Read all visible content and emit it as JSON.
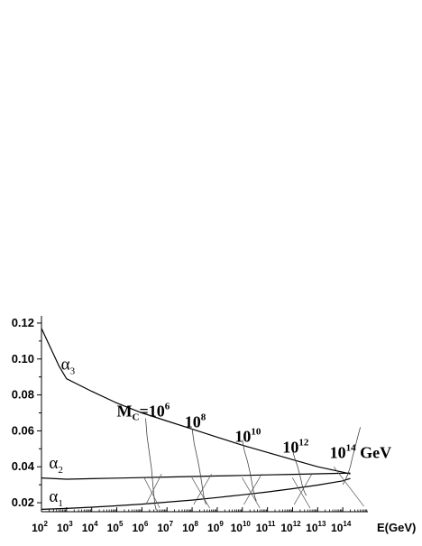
{
  "chart_data": {
    "type": "line",
    "xlabel": "E(GeV)",
    "ylabel": "",
    "x_scale": "log",
    "xlim": [
      100,
      1000000000000000
    ],
    "ylim": [
      0.015,
      0.124
    ],
    "x_ticks": [
      {
        "base": "10",
        "exp": "2"
      },
      {
        "base": "10",
        "exp": "3"
      },
      {
        "base": "10",
        "exp": "4"
      },
      {
        "base": "10",
        "exp": "5"
      },
      {
        "base": "10",
        "exp": "6"
      },
      {
        "base": "10",
        "exp": "7"
      },
      {
        "base": "10",
        "exp": "8"
      },
      {
        "base": "10",
        "exp": "9"
      },
      {
        "base": "10",
        "exp": "10"
      },
      {
        "base": "10",
        "exp": "11"
      },
      {
        "base": "10",
        "exp": "12"
      },
      {
        "base": "10",
        "exp": "13"
      },
      {
        "base": "10",
        "exp": "14"
      }
    ],
    "y_ticks": [
      "0.02",
      "0.04",
      "0.06",
      "0.08",
      "0.10",
      "0.12"
    ],
    "series": [
      {
        "label": "α",
        "sub": "3",
        "x": [
          100,
          200,
          500,
          1000,
          10000,
          100000,
          1000000,
          10000000,
          100000000,
          1000000000,
          10000000000,
          100000000000,
          1000000000000,
          10000000000000,
          100000000000000,
          200000000000000
        ],
        "y": [
          0.117,
          0.108,
          0.096,
          0.089,
          0.082,
          0.0755,
          0.07,
          0.0655,
          0.061,
          0.0565,
          0.052,
          0.048,
          0.044,
          0.04,
          0.037,
          0.036
        ]
      },
      {
        "label": "α",
        "sub": "2",
        "x": [
          100,
          1000,
          10000,
          100000,
          1000000,
          10000000,
          100000000,
          1000000000,
          10000000000,
          100000000000,
          1000000000000,
          10000000000000,
          100000000000000,
          200000000000000
        ],
        "y": [
          0.0338,
          0.0331,
          0.0334,
          0.0337,
          0.034,
          0.0343,
          0.0346,
          0.0349,
          0.0352,
          0.0355,
          0.0358,
          0.0361,
          0.0364,
          0.0365
        ]
      },
      {
        "label": "α",
        "sub": "1",
        "x": [
          100,
          1000,
          10000,
          100000,
          1000000,
          10000000,
          100000000,
          1000000000,
          10000000000,
          100000000000,
          1000000000000,
          10000000000000,
          100000000000000,
          200000000000000
        ],
        "y": [
          0.0163,
          0.0168,
          0.0175,
          0.0183,
          0.0192,
          0.0203,
          0.0215,
          0.0229,
          0.0244,
          0.026,
          0.0278,
          0.0298,
          0.0322,
          0.0335
        ]
      }
    ],
    "annotations": [
      {
        "prefix": "M",
        "sub": "C",
        "mid": "=10",
        "exp": "6",
        "unit": "",
        "x": 100000,
        "y": 0.068
      },
      {
        "prefix": "",
        "sub": "",
        "mid": "10",
        "exp": "8",
        "unit": "",
        "x": 50000000,
        "y": 0.062
      },
      {
        "prefix": "",
        "sub": "",
        "mid": "10",
        "exp": "10",
        "unit": "",
        "x": 5000000000,
        "y": 0.054
      },
      {
        "prefix": "",
        "sub": "",
        "mid": "10",
        "exp": "12",
        "unit": "",
        "x": 400000000000,
        "y": 0.048
      },
      {
        "prefix": "",
        "sub": "",
        "mid": "10",
        "exp": "14",
        "unit": " GeV",
        "x": 30000000000000,
        "y": 0.045
      }
    ],
    "threshold_curves": [
      {
        "x": [
          1400000,
          1600000,
          2000000,
          2400000,
          2700000,
          3000000,
          3300000,
          3700000
        ],
        "y": [
          0.067,
          0.057,
          0.047,
          0.039,
          0.031,
          0.024,
          0.019,
          0.016
        ]
      },
      {
        "x": [
          100000000,
          120000000,
          160000000,
          200000000,
          240000000,
          280000000,
          320000000,
          360000000
        ],
        "y": [
          0.061,
          0.053,
          0.045,
          0.038,
          0.031,
          0.025,
          0.021,
          0.019
        ]
      },
      {
        "x": [
          10000000000,
          12000000000,
          16000000000,
          20000000000,
          24000000000,
          28000000000,
          32000000000,
          36000000000
        ],
        "y": [
          0.055,
          0.049,
          0.043,
          0.037,
          0.031,
          0.026,
          0.023,
          0.021
        ]
      },
      {
        "x": [
          1000000000000,
          1200000000000,
          1600000000000,
          2000000000000,
          2400000000000,
          2800000000000,
          3200000000000,
          3600000000000
        ],
        "y": [
          0.049,
          0.045,
          0.04,
          0.035,
          0.03,
          0.027,
          0.025,
          0.024
        ]
      },
      {
        "x": [
          100000000000000,
          130000000000000,
          160000000000000,
          200000000000000,
          240000000000000,
          300000000000000,
          400000000000000,
          500000000000000
        ],
        "y": [
          0.03,
          0.033,
          0.036,
          0.04,
          0.045,
          0.05,
          0.057,
          0.062
        ]
      }
    ]
  }
}
